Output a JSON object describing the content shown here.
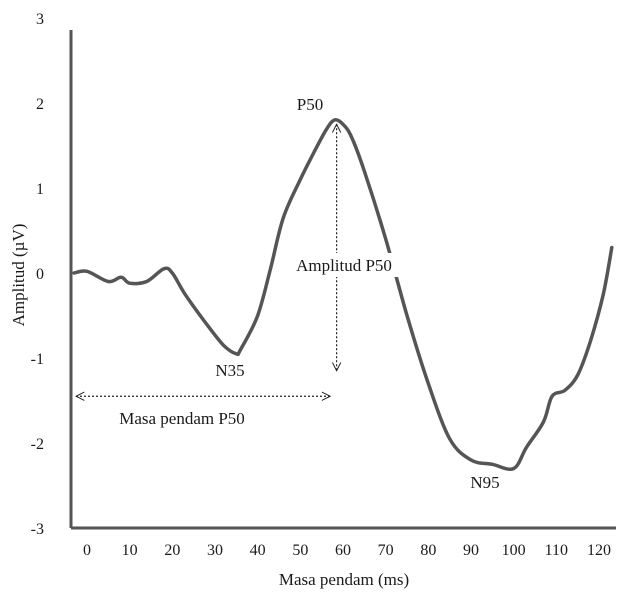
{
  "chart_data": {
    "type": "line",
    "xlabel": "Masa pendam (ms)",
    "ylabel": "Amplitud (µV)",
    "xlim": [
      -3,
      124
    ],
    "ylim": [
      -3,
      3
    ],
    "xticks": [
      0,
      10,
      20,
      30,
      40,
      50,
      60,
      70,
      80,
      90,
      100,
      110,
      120
    ],
    "yticks": [
      3,
      2,
      1,
      0,
      -1,
      -2,
      -3
    ],
    "grid": false,
    "line_color": "#555555",
    "series": [
      {
        "x": [
          -3,
          0,
          5,
          8,
          10,
          14,
          18,
          20,
          23,
          28,
          32,
          35,
          36,
          40,
          43,
          46,
          50,
          53,
          56,
          58,
          60,
          62,
          65,
          70,
          75,
          80,
          85,
          90,
          95,
          100,
          103,
          107,
          109,
          112,
          115,
          118,
          121,
          123
        ],
        "y": [
          0.0,
          0.02,
          -0.1,
          -0.05,
          -0.12,
          -0.1,
          0.05,
          0.0,
          -0.25,
          -0.6,
          -0.85,
          -0.95,
          -0.9,
          -0.5,
          0.05,
          0.65,
          1.1,
          1.4,
          1.68,
          1.8,
          1.75,
          1.6,
          1.2,
          0.4,
          -0.5,
          -1.3,
          -1.95,
          -2.2,
          -2.25,
          -2.3,
          -2.05,
          -1.75,
          -1.45,
          -1.38,
          -1.2,
          -0.8,
          -0.25,
          0.3
        ]
      }
    ],
    "annotations": {
      "p50_peak": "P50",
      "n35_trough": "N35",
      "n95_trough": "N95",
      "amplitude": "Amplitud P50",
      "latency": "Masa pendam P50"
    }
  }
}
